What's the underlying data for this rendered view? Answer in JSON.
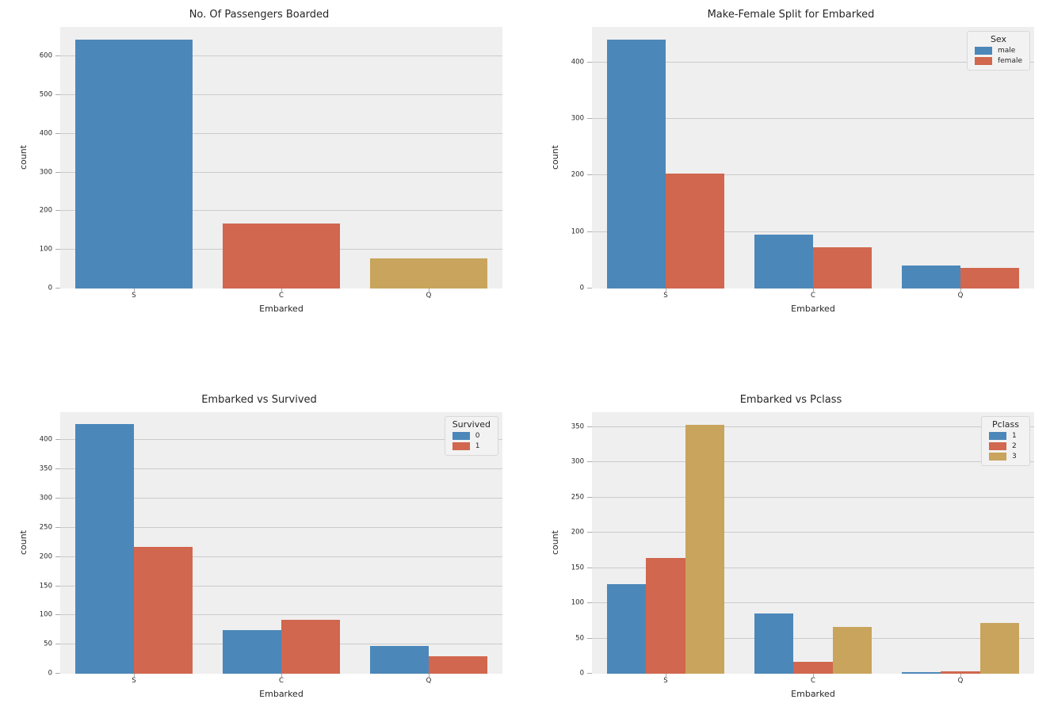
{
  "figure": {
    "background": "#ffffff",
    "panel_background": "#efefef",
    "grid_color": "#cbcbcb",
    "text_color": "#262626",
    "palette": {
      "blue": "#4c87b9",
      "red": "#d0674e",
      "gold": "#c8a45c"
    }
  },
  "chart_data": [
    {
      "type": "bar",
      "title": "No. Of Passengers Boarded",
      "xlabel": "Embarked",
      "ylabel": "count",
      "categories": [
        "S",
        "C",
        "Q"
      ],
      "values": [
        644,
        168,
        77
      ],
      "bar_colors": [
        "#4c87b9",
        "#d0674e",
        "#c8a45c"
      ],
      "ylim": [
        0,
        676
      ],
      "ytick_step": 100,
      "ytick_max": 600,
      "grid": true,
      "legend": null
    },
    {
      "type": "bar",
      "title": "Make-Female Split for Embarked",
      "xlabel": "Embarked",
      "ylabel": "count",
      "categories": [
        "S",
        "C",
        "Q"
      ],
      "series": [
        {
          "name": "male",
          "color": "#4c87b9",
          "values": [
            441,
            95,
            41
          ]
        },
        {
          "name": "female",
          "color": "#d0674e",
          "values": [
            203,
            73,
            36
          ]
        }
      ],
      "ylim": [
        0,
        463
      ],
      "ytick_step": 100,
      "ytick_max": 400,
      "grid": true,
      "legend": {
        "title": "Sex",
        "position": "upper right"
      }
    },
    {
      "type": "bar",
      "title": "Embarked vs Survived",
      "xlabel": "Embarked",
      "ylabel": "count",
      "categories": [
        "S",
        "C",
        "Q"
      ],
      "series": [
        {
          "name": "0",
          "color": "#4c87b9",
          "values": [
            427,
            75,
            47
          ]
        },
        {
          "name": "1",
          "color": "#d0674e",
          "values": [
            217,
            93,
            30
          ]
        }
      ],
      "ylim": [
        0,
        448
      ],
      "ytick_step": 50,
      "ytick_max": 400,
      "grid": true,
      "legend": {
        "title": "Survived",
        "position": "upper right"
      }
    },
    {
      "type": "bar",
      "title": "Embarked vs Pclass",
      "xlabel": "Embarked",
      "ylabel": "count",
      "categories": [
        "S",
        "C",
        "Q"
      ],
      "series": [
        {
          "name": "1",
          "color": "#4c87b9",
          "values": [
            127,
            85,
            2
          ]
        },
        {
          "name": "2",
          "color": "#d0674e",
          "values": [
            164,
            17,
            3
          ]
        },
        {
          "name": "3",
          "color": "#c8a45c",
          "values": [
            353,
            66,
            72
          ]
        }
      ],
      "ylim": [
        0,
        371
      ],
      "ytick_step": 50,
      "ytick_max": 350,
      "grid": true,
      "legend": {
        "title": "Pclass",
        "position": "upper right"
      }
    }
  ]
}
